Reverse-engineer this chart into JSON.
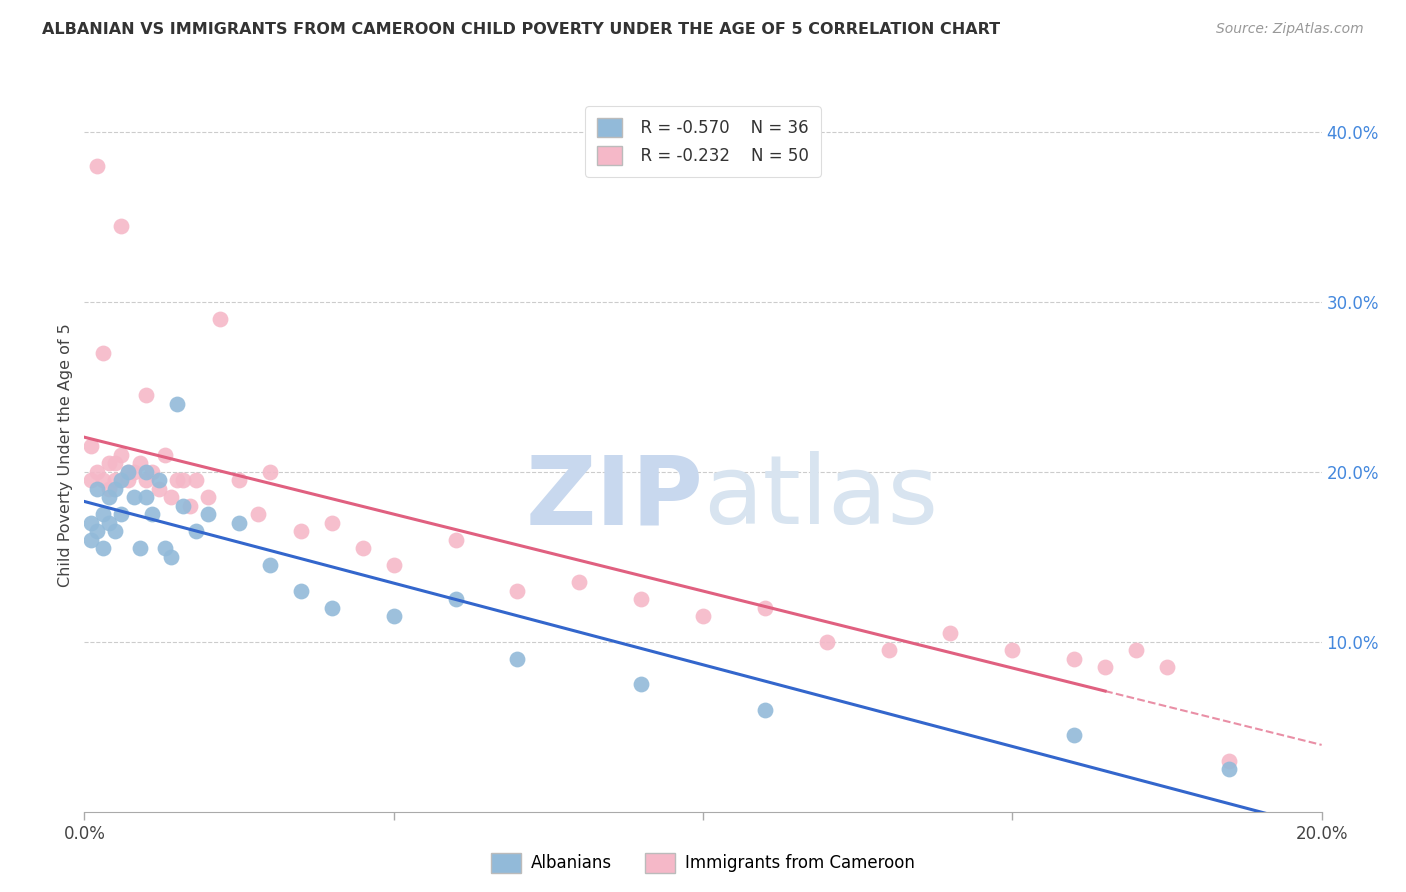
{
  "title": "ALBANIAN VS IMMIGRANTS FROM CAMEROON CHILD POVERTY UNDER THE AGE OF 5 CORRELATION CHART",
  "source": "Source: ZipAtlas.com",
  "ylabel": "Child Poverty Under the Age of 5",
  "xlim": [
    0.0,
    0.2
  ],
  "ylim": [
    0.0,
    0.42
  ],
  "xticks": [
    0.0,
    0.05,
    0.1,
    0.15,
    0.2
  ],
  "xticklabels": [
    "0.0%",
    "",
    "",
    "",
    "20.0%"
  ],
  "yticks_right": [
    0.1,
    0.2,
    0.3,
    0.4
  ],
  "ytick_right_labels": [
    "10.0%",
    "20.0%",
    "30.0%",
    "40.0%"
  ],
  "legend_r1": "R = -0.570",
  "legend_n1": "N = 36",
  "legend_r2": "R = -0.232",
  "legend_n2": "N = 50",
  "blue_color": "#92BAD9",
  "pink_color": "#F5B8C8",
  "line_blue": "#3366CC",
  "line_pink": "#E06080",
  "albanians_x": [
    0.001,
    0.001,
    0.002,
    0.002,
    0.003,
    0.003,
    0.004,
    0.004,
    0.005,
    0.005,
    0.006,
    0.006,
    0.007,
    0.008,
    0.009,
    0.01,
    0.01,
    0.011,
    0.012,
    0.013,
    0.014,
    0.015,
    0.016,
    0.018,
    0.02,
    0.025,
    0.03,
    0.035,
    0.04,
    0.05,
    0.06,
    0.07,
    0.09,
    0.11,
    0.16,
    0.185
  ],
  "albanians_y": [
    0.17,
    0.16,
    0.19,
    0.165,
    0.175,
    0.155,
    0.185,
    0.17,
    0.165,
    0.19,
    0.195,
    0.175,
    0.2,
    0.185,
    0.155,
    0.2,
    0.185,
    0.175,
    0.195,
    0.155,
    0.15,
    0.24,
    0.18,
    0.165,
    0.175,
    0.17,
    0.145,
    0.13,
    0.12,
    0.115,
    0.125,
    0.09,
    0.075,
    0.06,
    0.045,
    0.025
  ],
  "cameroon_x": [
    0.001,
    0.001,
    0.002,
    0.002,
    0.003,
    0.003,
    0.004,
    0.004,
    0.005,
    0.005,
    0.006,
    0.006,
    0.007,
    0.007,
    0.008,
    0.009,
    0.01,
    0.01,
    0.011,
    0.012,
    0.013,
    0.014,
    0.015,
    0.016,
    0.017,
    0.018,
    0.02,
    0.022,
    0.025,
    0.028,
    0.03,
    0.035,
    0.04,
    0.045,
    0.05,
    0.06,
    0.07,
    0.08,
    0.09,
    0.1,
    0.11,
    0.12,
    0.13,
    0.14,
    0.15,
    0.16,
    0.165,
    0.17,
    0.175,
    0.185
  ],
  "cameroon_y": [
    0.215,
    0.195,
    0.38,
    0.2,
    0.195,
    0.27,
    0.205,
    0.19,
    0.205,
    0.195,
    0.21,
    0.345,
    0.195,
    0.2,
    0.2,
    0.205,
    0.195,
    0.245,
    0.2,
    0.19,
    0.21,
    0.185,
    0.195,
    0.195,
    0.18,
    0.195,
    0.185,
    0.29,
    0.195,
    0.175,
    0.2,
    0.165,
    0.17,
    0.155,
    0.145,
    0.16,
    0.13,
    0.135,
    0.125,
    0.115,
    0.12,
    0.1,
    0.095,
    0.105,
    0.095,
    0.09,
    0.085,
    0.095,
    0.085,
    0.03
  ],
  "background_color": "#FFFFFF",
  "grid_color": "#CCCCCC"
}
